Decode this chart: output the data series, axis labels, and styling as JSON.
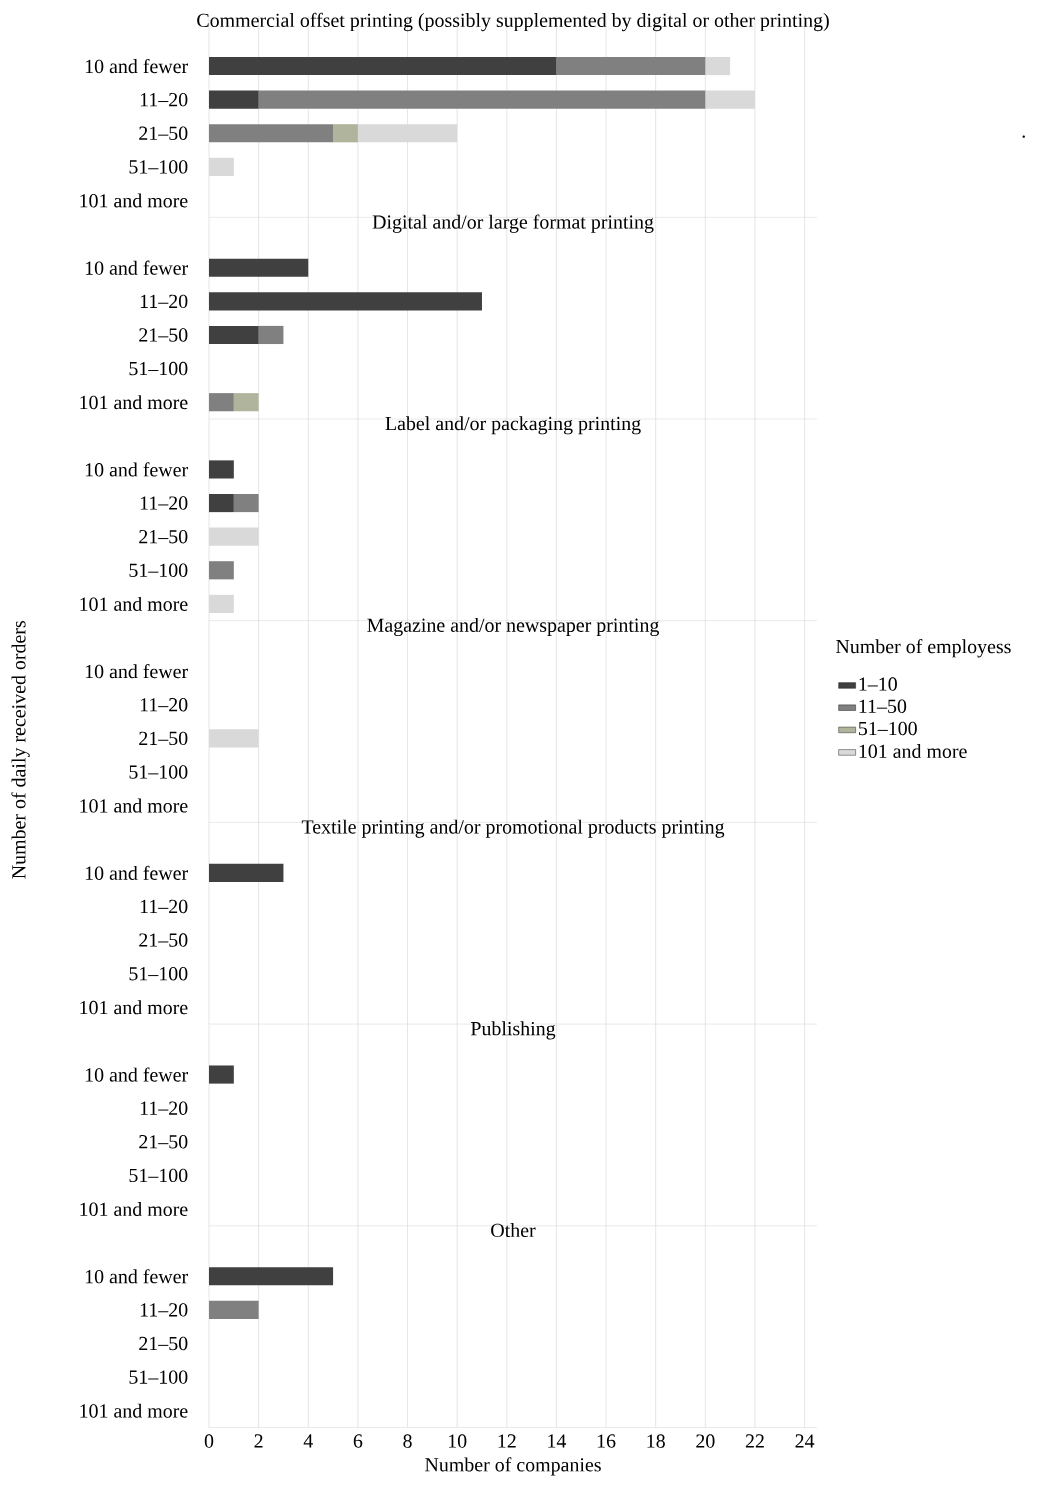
{
  "chart_data": [
    {
      "type": "bar",
      "orientation": "horizontal",
      "stacked": true,
      "title": "Commercial offset printing (possibly supplemented by digital or other printing)",
      "categories": [
        "10 and fewer",
        "11–20",
        "21–50",
        "51–100",
        "101 and more"
      ],
      "series": [
        {
          "color": "#404040",
          "values": [
            14,
            2,
            null,
            null,
            null
          ]
        },
        {
          "color": "#808080",
          "values": [
            6,
            18,
            5,
            null,
            null
          ]
        },
        {
          "color": "#b0b49c",
          "values": [
            null,
            null,
            1,
            null,
            null
          ]
        },
        {
          "color": "#d9d9d9",
          "values": [
            1,
            2,
            4,
            1,
            null
          ]
        }
      ],
      "xlim": [
        0,
        24.5
      ],
      "xticks": [
        0,
        2,
        4,
        6,
        8,
        10,
        12,
        14,
        16,
        18,
        20,
        22,
        24
      ],
      "grid": "x",
      "tick_labels": "y",
      "annotations": [
        "."
      ]
    },
    {
      "type": "bar",
      "orientation": "horizontal",
      "stacked": true,
      "title": "Digital and/or large format printing",
      "categories": [
        "10 and fewer",
        "11–20",
        "21–50",
        "51–100",
        "101 and more"
      ],
      "series": [
        {
          "color": "#404040",
          "values": [
            4,
            11,
            2,
            null,
            null
          ]
        },
        {
          "color": "#808080",
          "values": [
            null,
            null,
            1,
            null,
            1
          ]
        },
        {
          "color": "#b0b49c",
          "values": [
            null,
            null,
            null,
            null,
            1
          ]
        },
        {
          "color": "#d9d9d9",
          "values": [
            null,
            null,
            null,
            null,
            null
          ]
        }
      ],
      "xlim": [
        0,
        24.5
      ],
      "xticks": [
        0,
        2,
        4,
        6,
        8,
        10,
        12,
        14,
        16,
        18,
        20,
        22,
        24
      ],
      "grid": "x",
      "tick_labels": "y"
    },
    {
      "type": "bar",
      "orientation": "horizontal",
      "stacked": true,
      "title": "Label and/or packaging printing",
      "categories": [
        "10 and fewer",
        "11–20",
        "21–50",
        "51–100",
        "101 and more"
      ],
      "series": [
        {
          "color": "#404040",
          "values": [
            1,
            1,
            null,
            null,
            null
          ]
        },
        {
          "color": "#808080",
          "values": [
            null,
            1,
            null,
            1,
            null
          ]
        },
        {
          "color": "#b0b49c",
          "values": [
            null,
            null,
            null,
            null,
            null
          ]
        },
        {
          "color": "#d9d9d9",
          "values": [
            null,
            null,
            2,
            null,
            1
          ]
        }
      ],
      "xlim": [
        0,
        24.5
      ],
      "xticks": [
        0,
        2,
        4,
        6,
        8,
        10,
        12,
        14,
        16,
        18,
        20,
        22,
        24
      ],
      "grid": "x",
      "tick_labels": "y"
    },
    {
      "type": "bar",
      "orientation": "horizontal",
      "stacked": true,
      "title": "Magazine and/or newspaper printing",
      "ylabel": "Number of daily received orders",
      "legend_title": "Number of employess",
      "legend": "right",
      "categories": [
        "10 and fewer",
        "11–20",
        "21–50",
        "51–100",
        "101 and more"
      ],
      "series": [
        {
          "name": "1–10",
          "color": "#404040",
          "values": [
            null,
            null,
            null,
            null,
            null
          ]
        },
        {
          "name": "11–50",
          "color": "#808080",
          "values": [
            null,
            null,
            null,
            null,
            null
          ]
        },
        {
          "name": "51–100",
          "color": "#b0b49c",
          "values": [
            null,
            null,
            null,
            null,
            null
          ]
        },
        {
          "name": "101 and more",
          "color": "#d9d9d9",
          "values": [
            null,
            null,
            2,
            null,
            null
          ]
        }
      ],
      "xlim": [
        0,
        24.5
      ],
      "xticks": [
        0,
        2,
        4,
        6,
        8,
        10,
        12,
        14,
        16,
        18,
        20,
        22,
        24
      ],
      "grid": "x",
      "tick_labels": "y"
    },
    {
      "type": "bar",
      "orientation": "horizontal",
      "stacked": true,
      "title": "Textile printing and/or promotional products printing",
      "categories": [
        "10 and fewer",
        "11–20",
        "21–50",
        "51–100",
        "101 and more"
      ],
      "series": [
        {
          "color": "#404040",
          "values": [
            3,
            null,
            null,
            null,
            null
          ]
        },
        {
          "color": "#808080",
          "values": [
            null,
            null,
            null,
            null,
            null
          ]
        },
        {
          "color": "#b0b49c",
          "values": [
            null,
            null,
            null,
            null,
            null
          ]
        },
        {
          "color": "#d9d9d9",
          "values": [
            null,
            null,
            null,
            null,
            null
          ]
        }
      ],
      "xlim": [
        0,
        24.5
      ],
      "xticks": [
        0,
        2,
        4,
        6,
        8,
        10,
        12,
        14,
        16,
        18,
        20,
        22,
        24
      ],
      "grid": "x",
      "tick_labels": "y"
    },
    {
      "type": "bar",
      "orientation": "horizontal",
      "stacked": true,
      "title": "Publishing",
      "categories": [
        "10 and fewer",
        "11–20",
        "21–50",
        "51–100",
        "101 and more"
      ],
      "series": [
        {
          "color": "#404040",
          "values": [
            1,
            null,
            null,
            null,
            null
          ]
        },
        {
          "color": "#808080",
          "values": [
            null,
            null,
            null,
            null,
            null
          ]
        },
        {
          "color": "#b0b49c",
          "values": [
            null,
            null,
            null,
            null,
            null
          ]
        },
        {
          "color": "#d9d9d9",
          "values": [
            null,
            null,
            null,
            null,
            null
          ]
        }
      ],
      "xlim": [
        0,
        24.5
      ],
      "xticks": [
        0,
        2,
        4,
        6,
        8,
        10,
        12,
        14,
        16,
        18,
        20,
        22,
        24
      ],
      "grid": "x",
      "tick_labels": "y"
    },
    {
      "type": "bar",
      "orientation": "horizontal",
      "stacked": true,
      "title": "Other",
      "xlabel": "Number of companies",
      "categories": [
        "10 and fewer",
        "11–20",
        "21–50",
        "51–100",
        "101 and more"
      ],
      "series": [
        {
          "color": "#404040",
          "values": [
            5,
            null,
            null,
            null,
            null
          ]
        },
        {
          "color": "#808080",
          "values": [
            null,
            2,
            null,
            null,
            null
          ]
        },
        {
          "color": "#b0b49c",
          "values": [
            null,
            null,
            null,
            null,
            null
          ]
        },
        {
          "color": "#d9d9d9",
          "values": [
            null,
            null,
            null,
            null,
            null
          ]
        }
      ],
      "xlim": [
        0,
        24.5
      ],
      "xticks": [
        0,
        2,
        4,
        6,
        8,
        10,
        12,
        14,
        16,
        18,
        20,
        22,
        24
      ],
      "grid": "x"
    }
  ]
}
